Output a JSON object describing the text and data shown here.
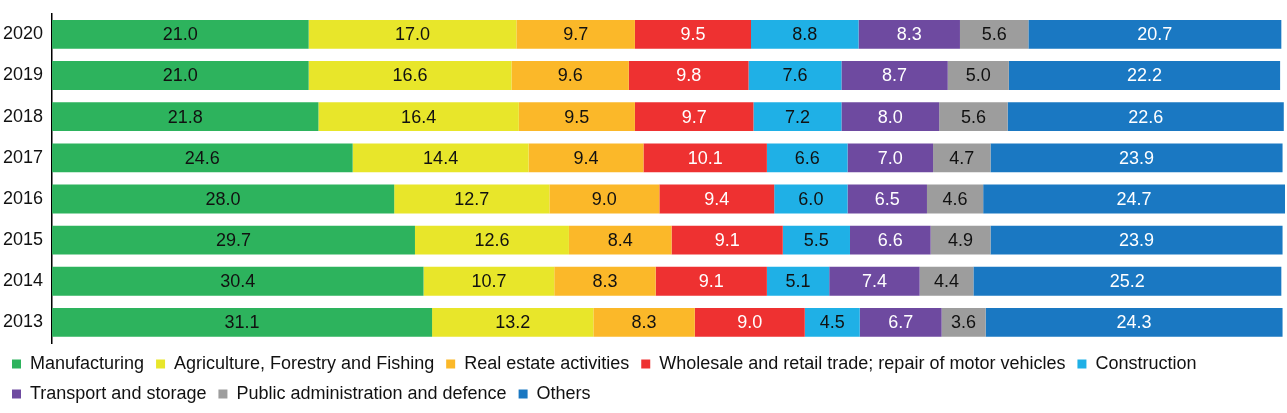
{
  "chart_data": {
    "type": "bar",
    "orientation": "horizontal",
    "stacked": true,
    "grid": false,
    "legend": "bottom",
    "categories": [
      "2020",
      "2019",
      "2018",
      "2017",
      "2016",
      "2015",
      "2014",
      "2013"
    ],
    "series": [
      {
        "name": "Manufacturing",
        "color": "#2db35d",
        "values": [
          21.0,
          21.0,
          21.8,
          24.6,
          28.0,
          29.7,
          30.4,
          31.1
        ],
        "value_labels": [
          "21.0",
          "21.0",
          "21.8",
          "24.6",
          "28.0",
          "29.7",
          "30.4",
          "31.1"
        ]
      },
      {
        "name": "Agriculture, Forestry and Fishing",
        "color": "#e8e62a",
        "values": [
          17.0,
          16.6,
          16.4,
          14.4,
          12.7,
          12.6,
          10.7,
          13.2
        ],
        "value_labels": [
          "17.0",
          "16.6",
          "16.4",
          "14.4",
          "12.7",
          "12.6",
          "10.7",
          "13.2"
        ]
      },
      {
        "name": "Real estate activities",
        "color": "#fbb829",
        "values": [
          9.7,
          9.6,
          9.5,
          9.4,
          9.0,
          8.4,
          8.3,
          8.3
        ],
        "value_labels": [
          "9.7",
          "9.6",
          "9.5",
          "9.4",
          "9.0",
          "8.4",
          "8.3",
          "8.3"
        ]
      },
      {
        "name": "Wholesale and retail trade; repair of motor vehicles",
        "color": "#ee3131",
        "values": [
          9.5,
          9.8,
          9.7,
          10.1,
          9.4,
          9.1,
          9.1,
          9.0
        ],
        "value_labels": [
          "9.5",
          "9.8",
          "9.7",
          "10.1",
          "9.4",
          "9.1",
          "9.1",
          "9.0"
        ]
      },
      {
        "name": "Construction",
        "color": "#1fb0e6",
        "values": [
          8.8,
          7.6,
          7.2,
          6.6,
          6.0,
          5.5,
          5.1,
          4.5
        ],
        "value_labels": [
          "8.8",
          "7.6",
          "7.2",
          "6.6",
          "6.0",
          "5.5",
          "5.1",
          "4.5"
        ]
      },
      {
        "name": "Transport and storage",
        "color": "#6e4aa0",
        "values": [
          8.3,
          8.7,
          8.0,
          7.0,
          6.5,
          6.6,
          7.4,
          6.7
        ],
        "value_labels": [
          "8.3",
          "8.7",
          "8.0",
          "7.0",
          "6.5",
          "6.6",
          "7.4",
          "6.7"
        ]
      },
      {
        "name": "Public administration and defence",
        "color": "#9d9d9d",
        "values": [
          5.6,
          5.0,
          5.6,
          4.7,
          4.6,
          4.9,
          4.4,
          3.6
        ],
        "value_labels": [
          "5.6",
          "5.0",
          "5.6",
          "4.7",
          "4.6",
          "4.9",
          "4.4",
          "3.6"
        ]
      },
      {
        "name": "Others",
        "color": "#1a78c2",
        "values": [
          20.7,
          22.2,
          22.6,
          23.9,
          24.7,
          23.9,
          25.2,
          24.3
        ],
        "value_labels": [
          "20.7",
          "22.2",
          "22.6",
          "23.9",
          "24.7",
          "23.9",
          "25.2",
          "24.3"
        ]
      }
    ]
  }
}
